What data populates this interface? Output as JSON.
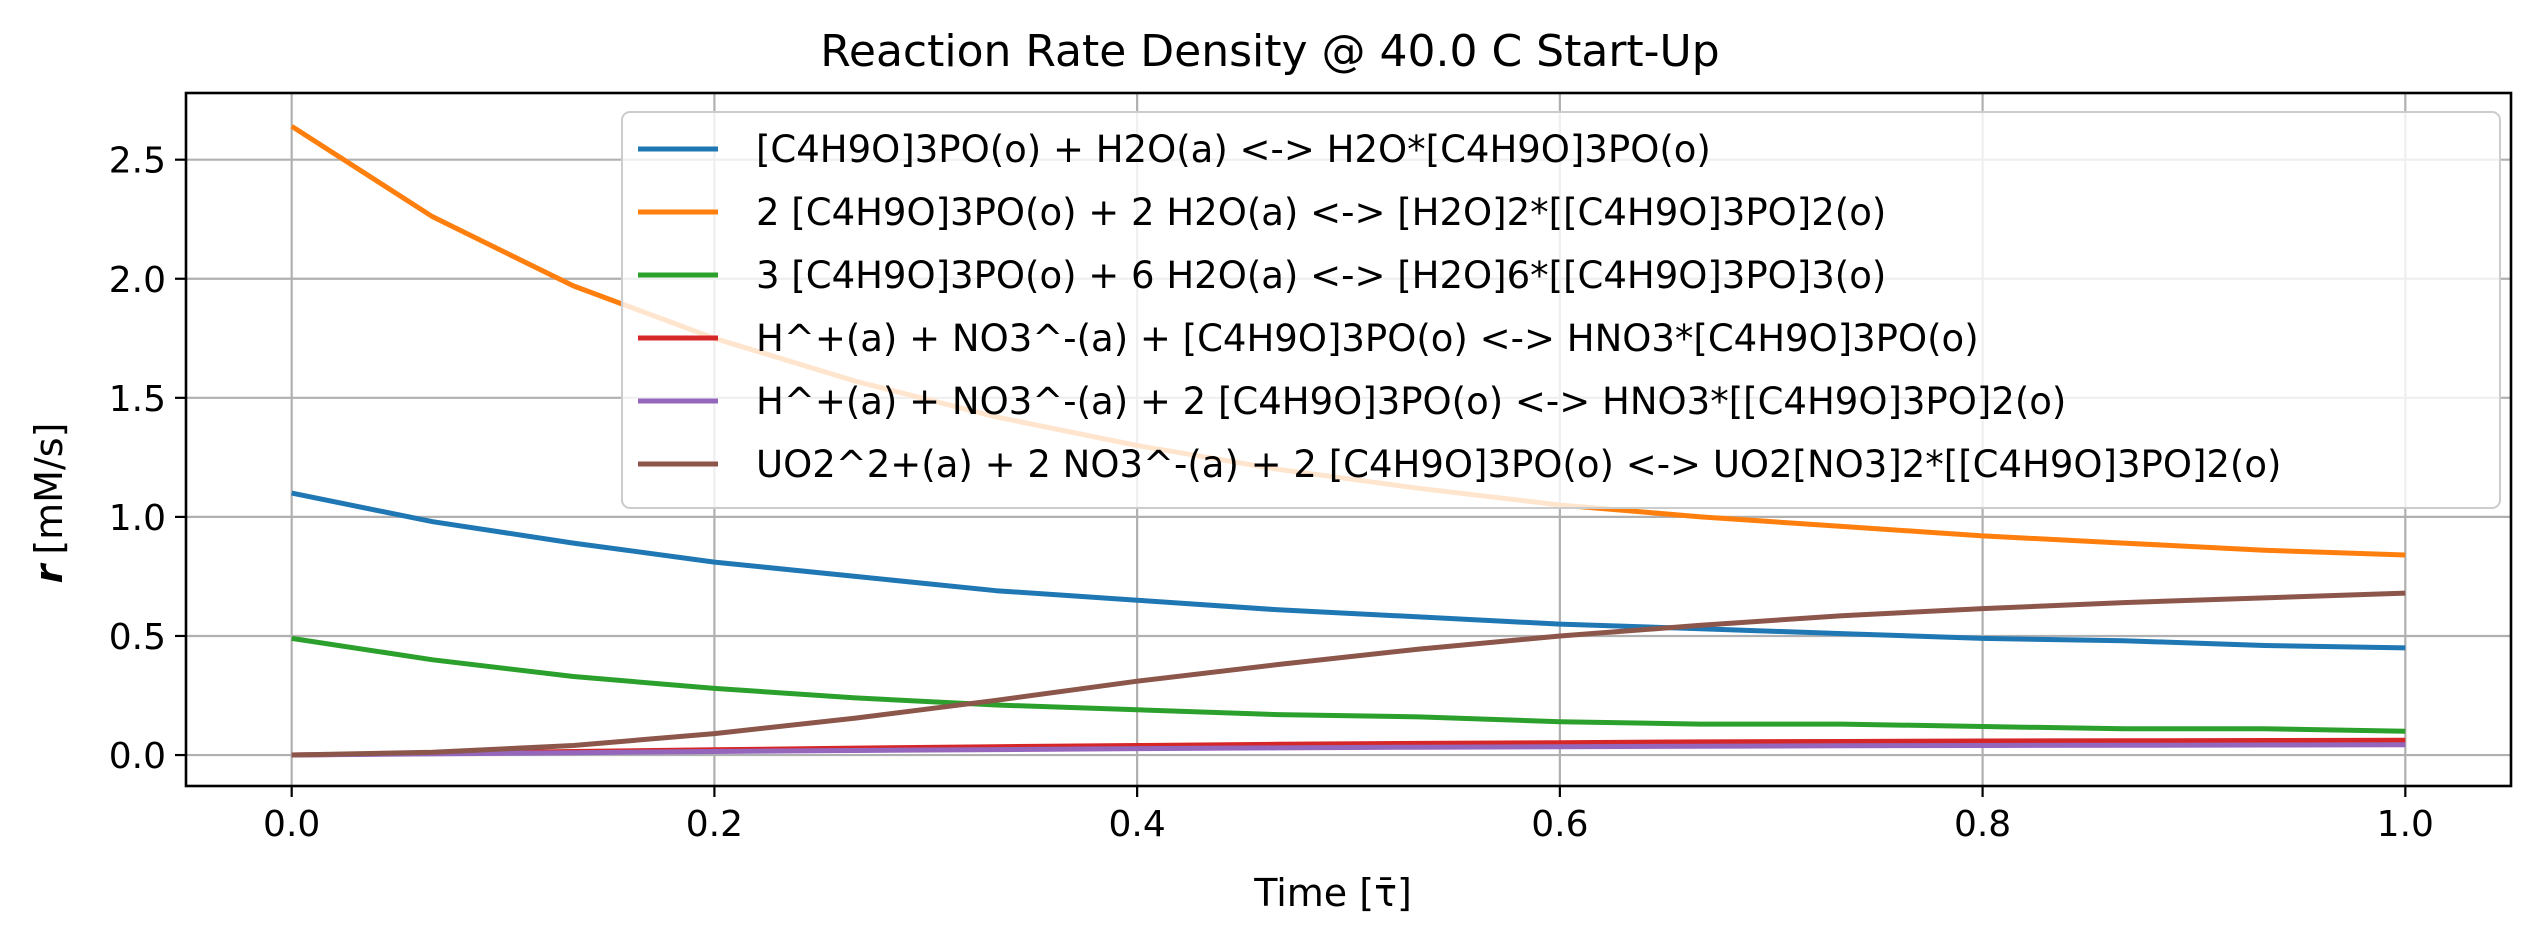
{
  "chart_data": {
    "type": "line",
    "title": "Reaction Rate Density @ 40.0 C Start-Up",
    "xlabel": "Time [τ̄]",
    "ylabel_symbol": "r",
    "ylabel_unit": "[mM/s]",
    "xlim": [
      -0.05,
      1.05
    ],
    "ylim": [
      -0.13,
      2.78
    ],
    "xticks": [
      0.0,
      0.2,
      0.4,
      0.6,
      0.8,
      1.0
    ],
    "xtick_labels": [
      "0.0",
      "0.2",
      "0.4",
      "0.6",
      "0.8",
      "1.0"
    ],
    "yticks": [
      0.0,
      0.5,
      1.0,
      1.5,
      2.0,
      2.5
    ],
    "ytick_labels": [
      "0.0",
      "0.5",
      "1.0",
      "1.5",
      "2.0",
      "2.5"
    ],
    "grid": true,
    "legend_position": "top-right",
    "x": [
      0.0,
      0.0667,
      0.1333,
      0.2,
      0.2667,
      0.3333,
      0.4,
      0.4667,
      0.5333,
      0.6,
      0.6667,
      0.7333,
      0.8,
      0.8667,
      0.9333,
      1.0
    ],
    "series": [
      {
        "name": "[C4H9O]3PO(o) + H2O(a) <-> H2O*[C4H9O]3PO(o)",
        "color": "#1f77b4",
        "values": [
          1.1,
          0.98,
          0.89,
          0.81,
          0.75,
          0.69,
          0.65,
          0.61,
          0.58,
          0.55,
          0.53,
          0.51,
          0.49,
          0.48,
          0.46,
          0.45
        ]
      },
      {
        "name": "2 [C4H9O]3PO(o) + 2 H2O(a) <-> [H2O]2*[[C4H9O]3PO]2(o)",
        "color": "#ff7f0e",
        "values": [
          2.64,
          2.26,
          1.97,
          1.75,
          1.57,
          1.42,
          1.3,
          1.2,
          1.12,
          1.05,
          1.0,
          0.96,
          0.92,
          0.89,
          0.86,
          0.84
        ]
      },
      {
        "name": "3 [C4H9O]3PO(o) + 6 H2O(a) <-> [H2O]6*[[C4H9O]3PO]3(o)",
        "color": "#2ca02c",
        "values": [
          0.49,
          0.4,
          0.33,
          0.28,
          0.24,
          0.21,
          0.19,
          0.17,
          0.16,
          0.14,
          0.13,
          0.13,
          0.12,
          0.11,
          0.11,
          0.1
        ]
      },
      {
        "name": "H^+(a) + NO3^-(a) + [C4H9O]3PO(o) <-> HNO3*[C4H9O]3PO(o)",
        "color": "#d62728",
        "values": [
          0.0,
          0.007,
          0.015,
          0.022,
          0.029,
          0.035,
          0.04,
          0.045,
          0.049,
          0.052,
          0.055,
          0.057,
          0.059,
          0.06,
          0.061,
          0.062
        ]
      },
      {
        "name": "H^+(a) + NO3^-(a) + 2 [C4H9O]3PO(o) <-> HNO3*[[C4H9O]3PO]2(o)",
        "color": "#9467bd",
        "values": [
          0.0,
          0.005,
          0.01,
          0.015,
          0.019,
          0.023,
          0.027,
          0.03,
          0.033,
          0.035,
          0.037,
          0.039,
          0.04,
          0.041,
          0.042,
          0.043
        ]
      },
      {
        "name": "UO2^2+(a) + 2 NO3^-(a) + 2 [C4H9O]3PO(o) <-> UO2[NO3]2*[[C4H9O]3PO]2(o)",
        "color": "#8c564b",
        "values": [
          0.0,
          0.012,
          0.04,
          0.09,
          0.155,
          0.23,
          0.31,
          0.38,
          0.445,
          0.5,
          0.545,
          0.585,
          0.615,
          0.64,
          0.66,
          0.68
        ]
      }
    ]
  }
}
